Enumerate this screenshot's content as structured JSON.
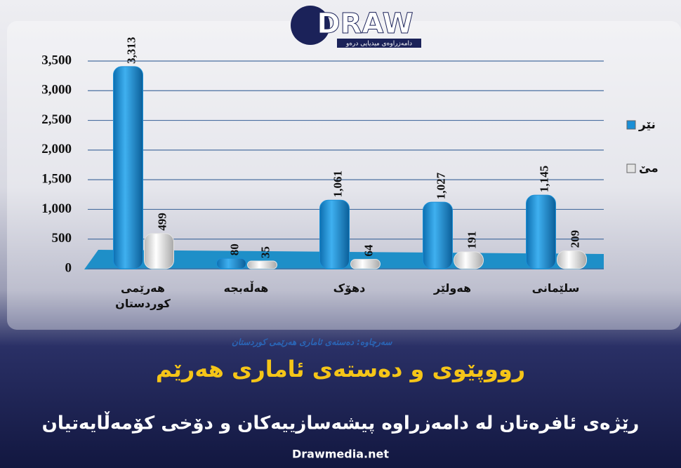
{
  "brand": {
    "name": "DRAW",
    "tagline": "دامەزراوەی میدیایی درەو"
  },
  "chart_data": {
    "type": "bar",
    "categories": [
      "هەرێمی کوردستان",
      "هەڵەبجە",
      "دهۆک",
      "هەولێر",
      "سلێمانی"
    ],
    "series": [
      {
        "name": "نێر",
        "color": "#1a8fd6",
        "values": [
          3313,
          80,
          1061,
          1027,
          1145
        ],
        "value_labels": [
          "3,313",
          "80",
          "1,061",
          "1,027",
          "1,145"
        ]
      },
      {
        "name": "مێ",
        "color": "#e4e4e4",
        "values": [
          499,
          35,
          64,
          191,
          209
        ],
        "value_labels": [
          "499",
          "35",
          "64",
          "191",
          "209"
        ]
      }
    ],
    "ylim": [
      0,
      3500
    ],
    "yticks": [
      0,
      500,
      {
        "value": 1000,
        "label": "1,000"
      },
      {
        "value": 1500,
        "label": "1,500"
      },
      {
        "value": 2000,
        "label": "2,000"
      },
      {
        "value": 2500,
        "label": "2,500"
      },
      {
        "value": 3000,
        "label": "3,000"
      },
      {
        "value": 3500,
        "label": "3,500"
      }
    ],
    "grid": true,
    "source": "سەرچاوە: دەستەی ئاماری هەرێمی کوردستان",
    "title": "رووپێوی و دەستەی ئاماری هەرێم",
    "subtitle": "رێژەی ئافرەتان لە دامەزراوە پیشەسازییەکان و دۆخی کۆمەڵایەتیان"
  },
  "footer": "Drawmedia.net"
}
